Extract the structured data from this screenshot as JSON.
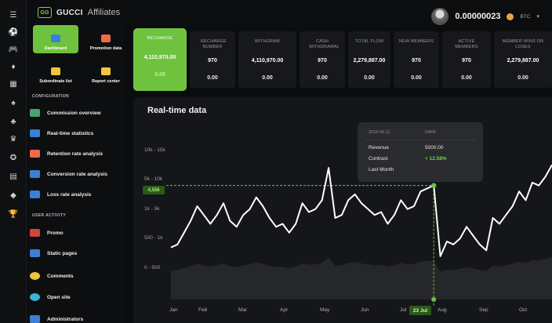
{
  "header": {
    "logo_mark": "GG",
    "brand": "GUCCI",
    "brand_suffix": "Affiliates",
    "balance": "0.00000023",
    "currency": "BTC",
    "caret": "▾"
  },
  "rail": {
    "icons": [
      "menu-icon",
      "soccer-ball-icon",
      "gamepad-icon",
      "diamond-icon",
      "slots-icon",
      "spade-icon",
      "clover-icon",
      "crown-icon",
      "chip-icon",
      "cards-icon",
      "gem-icon",
      "trophy-icon"
    ],
    "glyphs": [
      "☰",
      "⚽",
      "🎮",
      "♦",
      "▦",
      "♠",
      "♣",
      "♛",
      "✪",
      "▤",
      "◆",
      "🏆"
    ]
  },
  "sidebar": {
    "tiles": [
      {
        "label": "Dashboard",
        "active": true,
        "icon_color": "#3b7fd6"
      },
      {
        "label": "Promotion data",
        "active": false,
        "icon_color": "#f06a4a"
      },
      {
        "label": "Subordinate list",
        "active": false,
        "icon_color": "#f2c43a"
      },
      {
        "label": "Report center",
        "active": false,
        "icon_color": "#f2c43a"
      }
    ],
    "config_title": "CONFIGURATION",
    "config_items": [
      {
        "label": "Commission overview",
        "icon_color": "#4aa36a"
      },
      {
        "label": "Real-time statistics",
        "icon_color": "#3b7fd6"
      },
      {
        "label": "Retention rate analysis",
        "icon_color": "#f06a4a"
      },
      {
        "label": "Conversion rate analysis",
        "icon_color": "#3b7fd6"
      },
      {
        "label": "Loss rate analysis",
        "icon_color": "#3b7fd6"
      }
    ],
    "user_title": "USER ACTIVITY",
    "user_items": [
      {
        "label": "Promo",
        "icon_color": "#d2453a"
      },
      {
        "label": "Static pages",
        "icon_color": "#3b7fd6"
      },
      {
        "label": "Comments",
        "icon_color": "#f2c43a"
      },
      {
        "label": "Open site",
        "icon_color": "#3bb2d6"
      },
      {
        "label": "Administrators",
        "icon_color": "#3b7fd6"
      }
    ]
  },
  "stats": [
    {
      "label": "RECHARGE",
      "value": "4,110,970.00",
      "sub": "0.00",
      "highlight": true
    },
    {
      "label": "RECHARGE NUMBER",
      "value": "970",
      "sub": "0.00"
    },
    {
      "label": "WITHDRAW",
      "value": "4,110,970.00",
      "sub": "0.00"
    },
    {
      "label": "CASH WITHDRAWAL",
      "value": "970",
      "sub": "0.00"
    },
    {
      "label": "TOTAL FLOW",
      "value": "2,279,887.00",
      "sub": "0.00"
    },
    {
      "label": "NEW MEMBERS",
      "value": "970",
      "sub": "0.00"
    },
    {
      "label": "ACTIVE MEMBERS",
      "value": "970",
      "sub": "0.00"
    },
    {
      "label": "MEMBER WINS OR LOSES",
      "value": "2,279,887.00",
      "sub": "0.00"
    }
  ],
  "chart": {
    "title": "Real-time data",
    "cursor_value": "4,556",
    "cursor_date": "23 Jul",
    "tooltip": {
      "date": "2018.06.12",
      "col": "DATA",
      "rows": [
        {
          "label": "Revenue",
          "value": "5000.00"
        },
        {
          "label": "Contrast",
          "value": "+ 12.58%"
        },
        {
          "label": "Last Month",
          "value": ""
        }
      ]
    },
    "line_color": "#ffffff",
    "accent": "#6fc23e"
  },
  "chart_data": {
    "type": "line",
    "y_tick_labels": [
      "10k - 15k",
      "5k - 10k",
      "1k - 5k",
      "500 - 1k",
      "0 - 500"
    ],
    "x_tick_labels": [
      "Jan",
      "Feb",
      "Mar",
      "Apr",
      "May",
      "Jun",
      "Jul",
      "Aug",
      "Sep",
      "Oct"
    ],
    "series": [
      {
        "values": [
          1.5,
          1.6,
          2.0,
          2.4,
          2.9,
          2.6,
          2.3,
          2.6,
          3.0,
          2.4,
          2.2,
          2.6,
          2.8,
          3.2,
          2.9,
          2.5,
          2.2,
          2.3,
          2.0,
          2.3,
          3.0,
          2.7,
          2.8,
          3.1,
          4.2,
          2.5,
          2.6,
          3.1,
          3.3,
          3.0,
          2.8,
          2.6,
          2.7,
          2.3,
          2.6,
          3.1,
          2.8,
          2.9,
          3.4,
          3.5,
          3.6,
          1.2,
          1.7,
          1.6,
          1.8,
          2.2,
          1.9,
          1.6,
          1.4,
          2.5,
          2.3,
          2.6,
          2.9,
          3.4,
          3.1,
          3.7,
          3.6,
          3.9,
          4.3
        ]
      }
    ],
    "grid": false
  }
}
